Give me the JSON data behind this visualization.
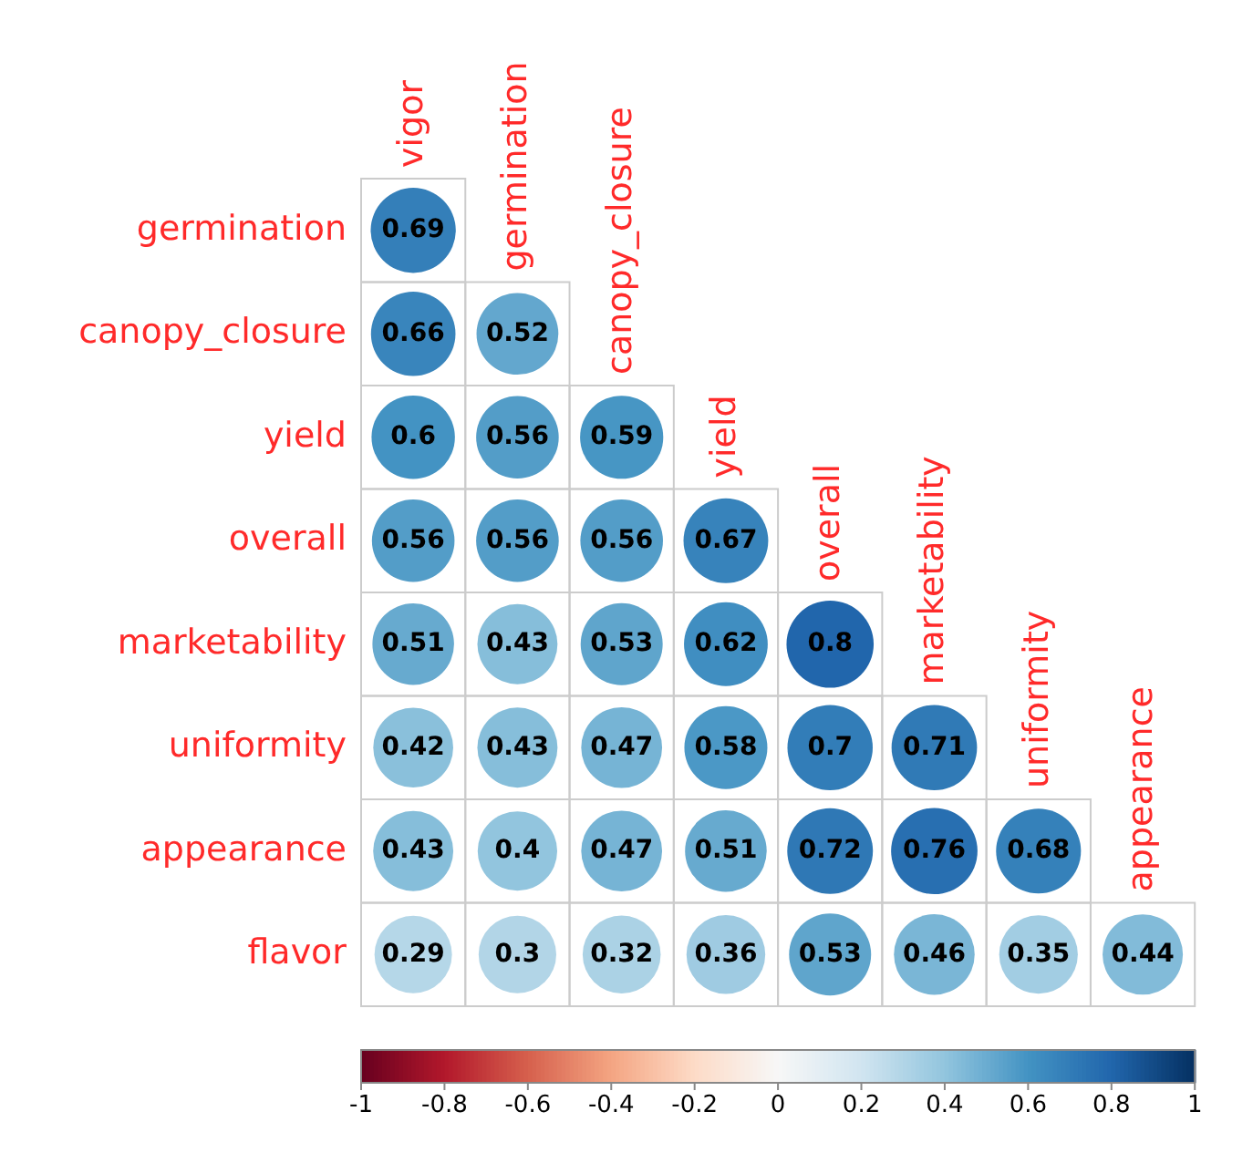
{
  "chart_data": {
    "type": "heatmap",
    "categories": [
      "vigor",
      "germination",
      "canopy_closure",
      "yield",
      "overall",
      "marketability",
      "uniformity",
      "appearance"
    ],
    "y_categories": [
      "germination",
      "canopy_closure",
      "yield",
      "overall",
      "marketability",
      "uniformity",
      "appearance",
      "flavor"
    ],
    "cells": [
      [
        0.69,
        null,
        null,
        null,
        null,
        null,
        null,
        null
      ],
      [
        0.66,
        0.52,
        null,
        null,
        null,
        null,
        null,
        null
      ],
      [
        0.6,
        0.56,
        0.59,
        null,
        null,
        null,
        null,
        null
      ],
      [
        0.56,
        0.56,
        0.56,
        0.67,
        null,
        null,
        null,
        null
      ],
      [
        0.51,
        0.43,
        0.53,
        0.62,
        0.8,
        null,
        null,
        null
      ],
      [
        0.42,
        0.43,
        0.47,
        0.58,
        0.7,
        0.71,
        null,
        null
      ],
      [
        0.43,
        0.4,
        0.47,
        0.51,
        0.72,
        0.76,
        0.68,
        null
      ],
      [
        0.29,
        0.3,
        0.32,
        0.36,
        0.53,
        0.46,
        0.35,
        0.44
      ]
    ],
    "clim": [
      -1,
      1
    ],
    "cticks": [
      -1,
      -0.8,
      -0.6,
      -0.4,
      -0.2,
      0,
      0.2,
      0.4,
      0.6,
      0.8,
      1
    ],
    "data_labels": true
  }
}
